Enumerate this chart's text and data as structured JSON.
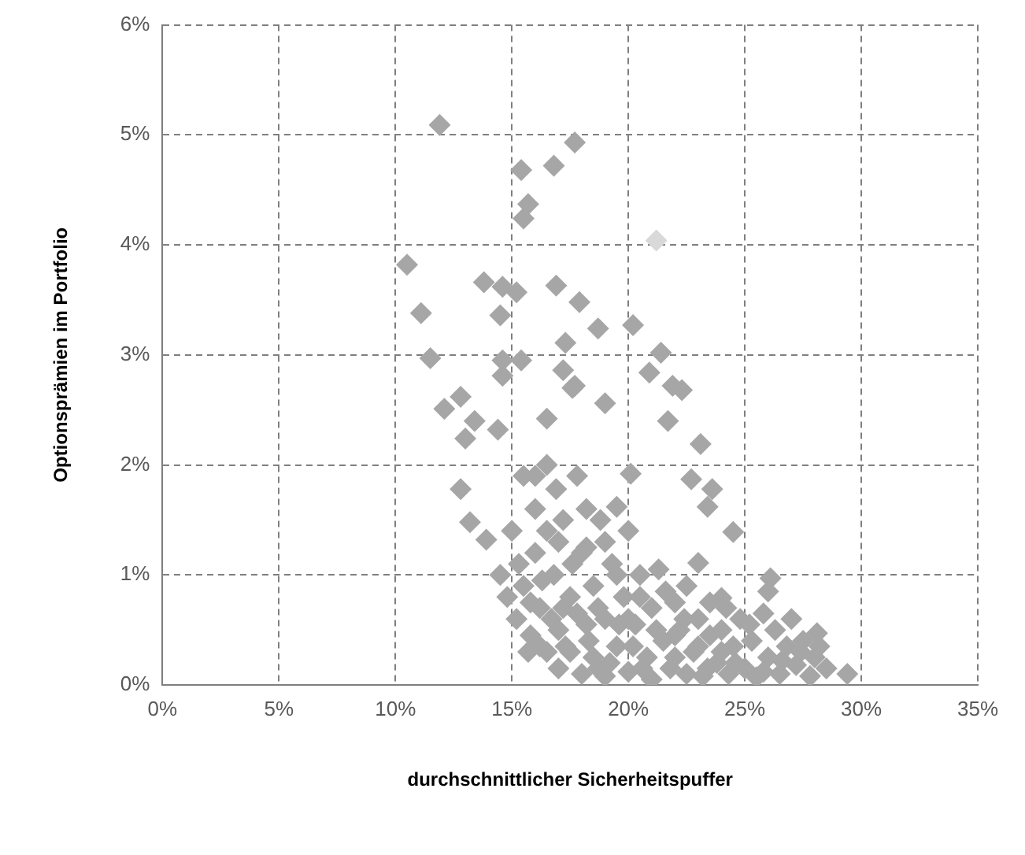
{
  "chart_data": {
    "type": "scatter",
    "xlabel": "durchschnittlicher Sicherheitspuffer",
    "ylabel": "Optionsprämien im Portfolio",
    "xlim": [
      0,
      35
    ],
    "xticks": [
      {
        "value": 0,
        "label": "0%"
      },
      {
        "value": 5,
        "label": "5%"
      },
      {
        "value": 10,
        "label": "10%"
      },
      {
        "value": 15,
        "label": "15%"
      },
      {
        "value": 20,
        "label": "20%"
      },
      {
        "value": 25,
        "label": "25%"
      },
      {
        "value": 30,
        "label": "30%"
      },
      {
        "value": 35,
        "label": "35%"
      }
    ],
    "ylim": [
      0,
      6
    ],
    "yticks": [
      {
        "value": 0,
        "label": "0%"
      },
      {
        "value": 1,
        "label": "1%"
      },
      {
        "value": 2,
        "label": "2%"
      },
      {
        "value": 3,
        "label": "3%"
      },
      {
        "value": 4,
        "label": "4%"
      },
      {
        "value": 5,
        "label": "5%"
      },
      {
        "value": 6,
        "label": "6%"
      }
    ],
    "grid": true,
    "marker": "diamond",
    "legend": false,
    "series": [
      {
        "color": "#a6a6a6",
        "x": [
          11.9,
          17.7,
          16.8,
          15.4,
          15.7,
          15.5,
          10.5,
          13.8,
          14.6,
          15.2,
          16.9,
          17.9,
          11.1,
          14.5,
          18.7,
          20.2,
          17.3,
          21.4,
          11.5,
          14.6,
          15.4,
          17.2,
          20.9,
          21.9,
          14.6,
          17.7,
          12.1,
          12.8,
          13.4,
          14.4,
          13.0,
          12.8,
          13.2,
          13.9,
          16.5,
          17.6,
          19.0,
          20.1,
          21.7,
          22.3,
          23.1,
          22.7,
          23.6,
          23.4,
          24.5,
          23.0,
          18.2,
          16.9,
          19.5,
          26.1,
          29.4,
          28.1,
          24.0,
          14.5,
          14.8,
          15.0,
          15.2,
          15.5,
          15.5,
          15.8,
          16.0,
          16.0,
          16.2,
          16.5,
          16.5,
          16.8,
          17.0,
          17.0,
          17.2,
          17.5,
          17.5,
          17.8,
          18.0,
          18.0,
          18.2,
          18.5,
          18.5,
          18.8,
          19.0,
          19.0,
          19.3,
          19.5,
          19.8,
          20.0,
          20.0,
          20.3,
          20.5,
          20.8,
          21.0,
          21.0,
          21.3,
          21.5,
          21.8,
          22.0,
          22.2,
          22.5,
          22.5,
          22.8,
          23.0,
          23.2,
          23.5,
          23.5,
          23.8,
          24.0,
          24.3,
          24.5,
          24.8,
          25.0,
          25.3,
          25.5,
          25.8,
          26.0,
          26.3,
          26.5,
          26.8,
          27.0,
          27.2,
          27.5,
          27.8,
          28.0,
          28.5,
          26.0,
          15.3,
          15.8,
          16.3,
          16.7,
          17.3,
          17.8,
          18.3,
          18.7,
          19.2,
          19.6,
          20.2,
          20.6,
          21.2,
          21.6,
          22.0,
          22.4,
          23.0,
          23.4,
          24.0,
          24.6,
          25.2,
          25.8,
          26.6,
          27.4,
          16.0,
          17.0,
          18.2,
          19.5,
          20.5,
          17.6,
          16.5,
          15.7,
          18.7,
          20.0,
          22.0,
          24.2,
          28.2,
          19.0,
          17.2,
          16.2
        ],
        "values": [
          5.09,
          4.93,
          4.72,
          4.68,
          4.37,
          4.24,
          3.82,
          3.66,
          3.62,
          3.57,
          3.63,
          3.48,
          3.38,
          3.36,
          3.24,
          3.27,
          3.11,
          3.02,
          2.97,
          2.95,
          2.95,
          2.86,
          2.84,
          2.72,
          2.81,
          2.72,
          2.51,
          2.62,
          2.4,
          2.32,
          2.24,
          1.78,
          1.48,
          1.32,
          2.42,
          2.7,
          2.56,
          1.92,
          2.4,
          2.68,
          2.19,
          1.87,
          1.78,
          1.62,
          1.39,
          1.11,
          1.25,
          1.78,
          1.62,
          0.97,
          0.1,
          0.47,
          0.79,
          1.0,
          0.8,
          1.4,
          0.6,
          1.9,
          0.9,
          0.45,
          1.6,
          1.2,
          0.7,
          0.3,
          2.0,
          1.0,
          0.5,
          0.15,
          1.5,
          0.8,
          0.3,
          1.9,
          1.2,
          0.1,
          0.55,
          0.9,
          0.25,
          1.5,
          0.6,
          0.08,
          1.1,
          0.35,
          0.8,
          0.12,
          1.4,
          0.55,
          1.0,
          0.25,
          0.7,
          0.05,
          1.05,
          0.4,
          0.15,
          0.75,
          0.5,
          0.1,
          0.9,
          0.3,
          0.6,
          0.08,
          0.45,
          0.75,
          0.2,
          0.5,
          0.1,
          0.35,
          0.6,
          0.15,
          0.4,
          0.07,
          0.65,
          0.25,
          0.5,
          0.1,
          0.35,
          0.6,
          0.18,
          0.4,
          0.08,
          0.25,
          0.15,
          0.85,
          1.1,
          0.75,
          0.95,
          0.6,
          0.35,
          0.65,
          0.4,
          0.7,
          0.2,
          0.55,
          0.35,
          0.15,
          0.5,
          0.85,
          0.25,
          0.6,
          0.35,
          0.15,
          0.3,
          0.2,
          0.55,
          0.12,
          0.22,
          0.3,
          1.9,
          1.3,
          1.6,
          1.0,
          0.8,
          1.1,
          1.4,
          0.3,
          0.15,
          0.6,
          0.45,
          0.7,
          0.35,
          1.3,
          0.7,
          0.35
        ]
      },
      {
        "color": "#d9d9d9",
        "x": [
          21.2
        ],
        "values": [
          4.04
        ]
      }
    ]
  }
}
